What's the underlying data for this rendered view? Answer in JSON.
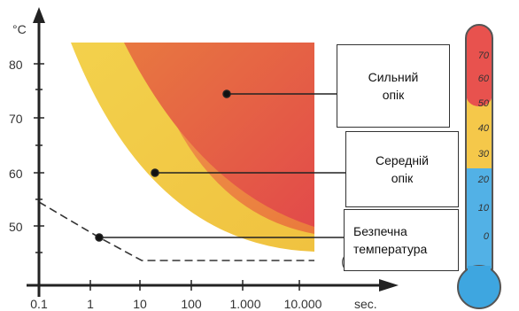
{
  "axes": {
    "y_unit": "°C",
    "x_unit": "sec.",
    "y_ticks": [
      "80",
      "70",
      "60",
      "50"
    ],
    "x_ticks": [
      "0.1",
      "1",
      "10",
      "100",
      "1.000",
      "10.000"
    ]
  },
  "zones": {
    "severe": {
      "label_line1": "Сильний",
      "label_line2": "опік",
      "color": "#e04848"
    },
    "medium": {
      "label_line1": "Середній",
      "label_line2": "опік",
      "color": "#ee8a3a"
    },
    "safe": {
      "label_line1": "Безпечна",
      "label_line2": "температура",
      "color": "#f2d34a"
    }
  },
  "thermometer": {
    "ticks": [
      "70",
      "60",
      "50",
      "40",
      "30",
      "20",
      "10",
      "0"
    ],
    "colors": {
      "hot": "#e8524e",
      "warm": "#f5c84a",
      "cold": "#52b1e6",
      "bulb": "#3ea6e0"
    }
  }
}
